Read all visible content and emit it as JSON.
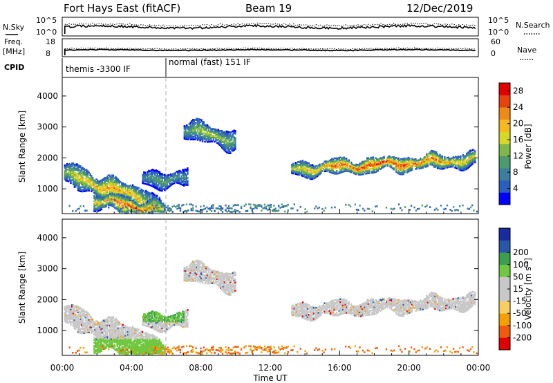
{
  "header": {
    "station": "Fort Hays East (fitACF)",
    "beam": "Beam 19",
    "date": "12/Dec/2019"
  },
  "strips": {
    "nsky_label": "N.Sky",
    "nsky_top": "10^5",
    "nsky_bottom": "10^0",
    "nsearch_label": "N.Search",
    "nsearch_top": "10^5",
    "nsearch_bottom": "10^0",
    "freq_label": "Freq.",
    "freq_unit": "[MHz]",
    "freq_top": "18",
    "freq_bottom": "8",
    "nave_label": "Nave",
    "nave_top": "60",
    "nave_bottom": "0",
    "cpid_label": "CPID",
    "cpid_modes": [
      {
        "label": "themis -3300 IF",
        "start_hour": 0
      },
      {
        "label": "normal (fast) 151 IF",
        "start_hour": 6
      }
    ]
  },
  "colors": {
    "power": [
      "#0000ff",
      "#2a5fc0",
      "#3d7e9e",
      "#4c9a6e",
      "#7fb74a",
      "#d8d82a",
      "#f5b81e",
      "#f08a17",
      "#e6440c",
      "#e00000"
    ],
    "velocity": [
      "#e00000",
      "#f05a10",
      "#f5a000",
      "#f5d060",
      "#c8c8c8",
      "#c8c8c8",
      "#70c840",
      "#3aa050",
      "#2a56a8",
      "#1a2aa0"
    ]
  },
  "chart_data": [
    {
      "type": "heatmap",
      "name": "power-panel",
      "ylabel": "Slant Range [km]",
      "xlabel": "Time UT",
      "xlim": [
        0,
        24
      ],
      "ylim": [
        200,
        4600
      ],
      "xticks": [
        "00:00",
        "04:00",
        "08:00",
        "12:00",
        "16:00",
        "20:00",
        "00:00"
      ],
      "yticks": [
        1000,
        2000,
        3000,
        4000
      ],
      "colorbar": {
        "label": "Power [dB]",
        "ticks": [
          4,
          8,
          12,
          16,
          20,
          24,
          28
        ],
        "range": [
          0,
          30
        ]
      },
      "regions": [
        {
          "t0": 0.1,
          "t1": 5.6,
          "r_center": 1450,
          "r_width": 350,
          "slope": -180,
          "peak": 22
        },
        {
          "t0": 1.8,
          "t1": 5.9,
          "r_center": 600,
          "r_width": 250,
          "slope": -80,
          "peak": 26
        },
        {
          "t0": 7.0,
          "t1": 10.0,
          "r_center": 2900,
          "r_width": 300,
          "slope": -120,
          "peak": 16
        },
        {
          "t0": 13.2,
          "t1": 23.8,
          "r_center": 1600,
          "r_width": 220,
          "slope": 30,
          "peak": 27
        },
        {
          "t0": 4.6,
          "t1": 7.2,
          "r_center": 1300,
          "r_width": 250,
          "slope": 0,
          "peak": 12
        }
      ]
    },
    {
      "type": "heatmap",
      "name": "velocity-panel",
      "ylabel": "Slant Range [km]",
      "xlabel": "Time UT",
      "xlim": [
        0,
        24
      ],
      "ylim": [
        200,
        4600
      ],
      "xticks": [
        "00:00",
        "04:00",
        "08:00",
        "12:00",
        "16:00",
        "20:00",
        "00:00"
      ],
      "yticks": [
        1000,
        2000,
        3000,
        4000
      ],
      "colorbar": {
        "label": "Velocity [m s^-1]",
        "ticks": [
          -200,
          -100,
          -50,
          -15,
          15,
          50,
          100,
          200
        ],
        "range": [
          -250,
          250
        ]
      }
    }
  ]
}
